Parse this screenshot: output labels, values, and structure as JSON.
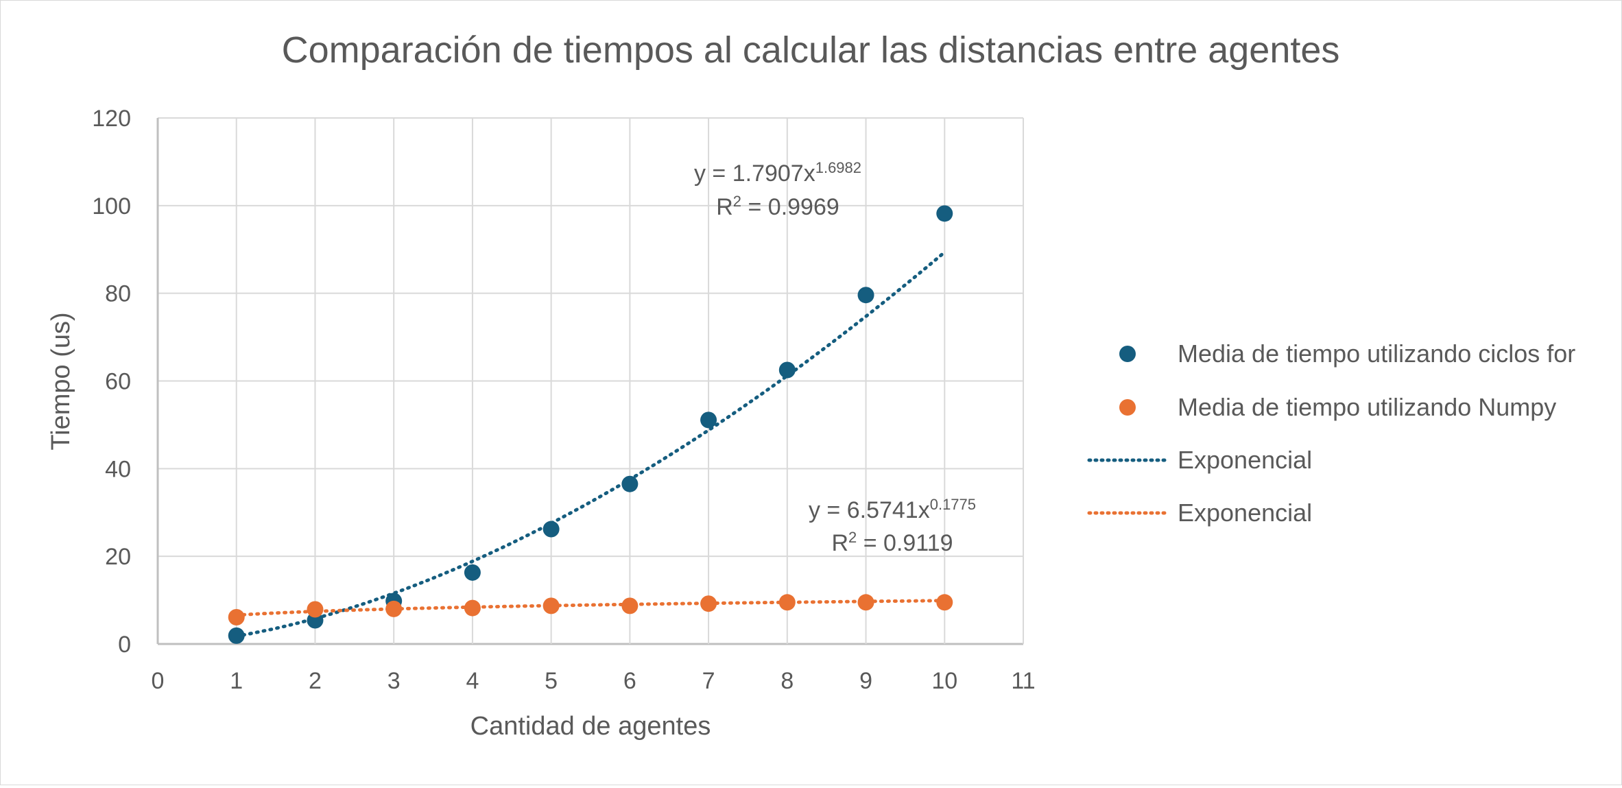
{
  "chart_data": {
    "type": "scatter",
    "title": "Comparación de tiempos al calcular las distancias entre agentes",
    "xlabel": "Cantidad de agentes",
    "ylabel": "Tiempo (us)",
    "xlim": [
      0,
      11
    ],
    "ylim": [
      0,
      120
    ],
    "x_ticks": [
      0,
      1,
      2,
      3,
      4,
      5,
      6,
      7,
      8,
      9,
      10,
      11
    ],
    "y_ticks": [
      0,
      20,
      40,
      60,
      80,
      100,
      120
    ],
    "grid": true,
    "legend_position": "right",
    "series": [
      {
        "name": "Media de tiempo utilizando ciclos for",
        "color": "#155d7f",
        "marker": "circle",
        "x": [
          1,
          2,
          3,
          4,
          5,
          6,
          7,
          8,
          9,
          10
        ],
        "y": [
          1.9,
          5.4,
          9.8,
          16.3,
          26.2,
          36.5,
          51.1,
          62.5,
          79.6,
          98.2
        ]
      },
      {
        "name": "Media de tiempo utilizando Numpy",
        "color": "#e97132",
        "marker": "circle",
        "x": [
          1,
          2,
          3,
          4,
          5,
          6,
          7,
          8,
          9,
          10
        ],
        "y": [
          6.1,
          7.9,
          8.0,
          8.2,
          8.7,
          8.7,
          9.2,
          9.5,
          9.5,
          9.5
        ]
      }
    ],
    "trendlines": [
      {
        "name": "Exponencial",
        "color": "#155d7f",
        "style": "dotted",
        "coef": 1.7907,
        "power": 1.6982,
        "x_range": [
          1,
          10
        ],
        "equation": {
          "prefix": "y = 1.7907x",
          "sup": "1.6982",
          "r2_prefix": "R",
          "r2_sup": "2",
          "r2_value": " = 0.9969"
        }
      },
      {
        "name": "Exponencial",
        "color": "#e97132",
        "style": "dotted",
        "coef": 6.5741,
        "power": 0.1775,
        "x_range": [
          1,
          10
        ],
        "equation": {
          "prefix": "y = 6.5741x",
          "sup": "0.1775",
          "r2_prefix": "R",
          "r2_sup": "2",
          "r2_value": " = 0.9119"
        }
      }
    ]
  }
}
